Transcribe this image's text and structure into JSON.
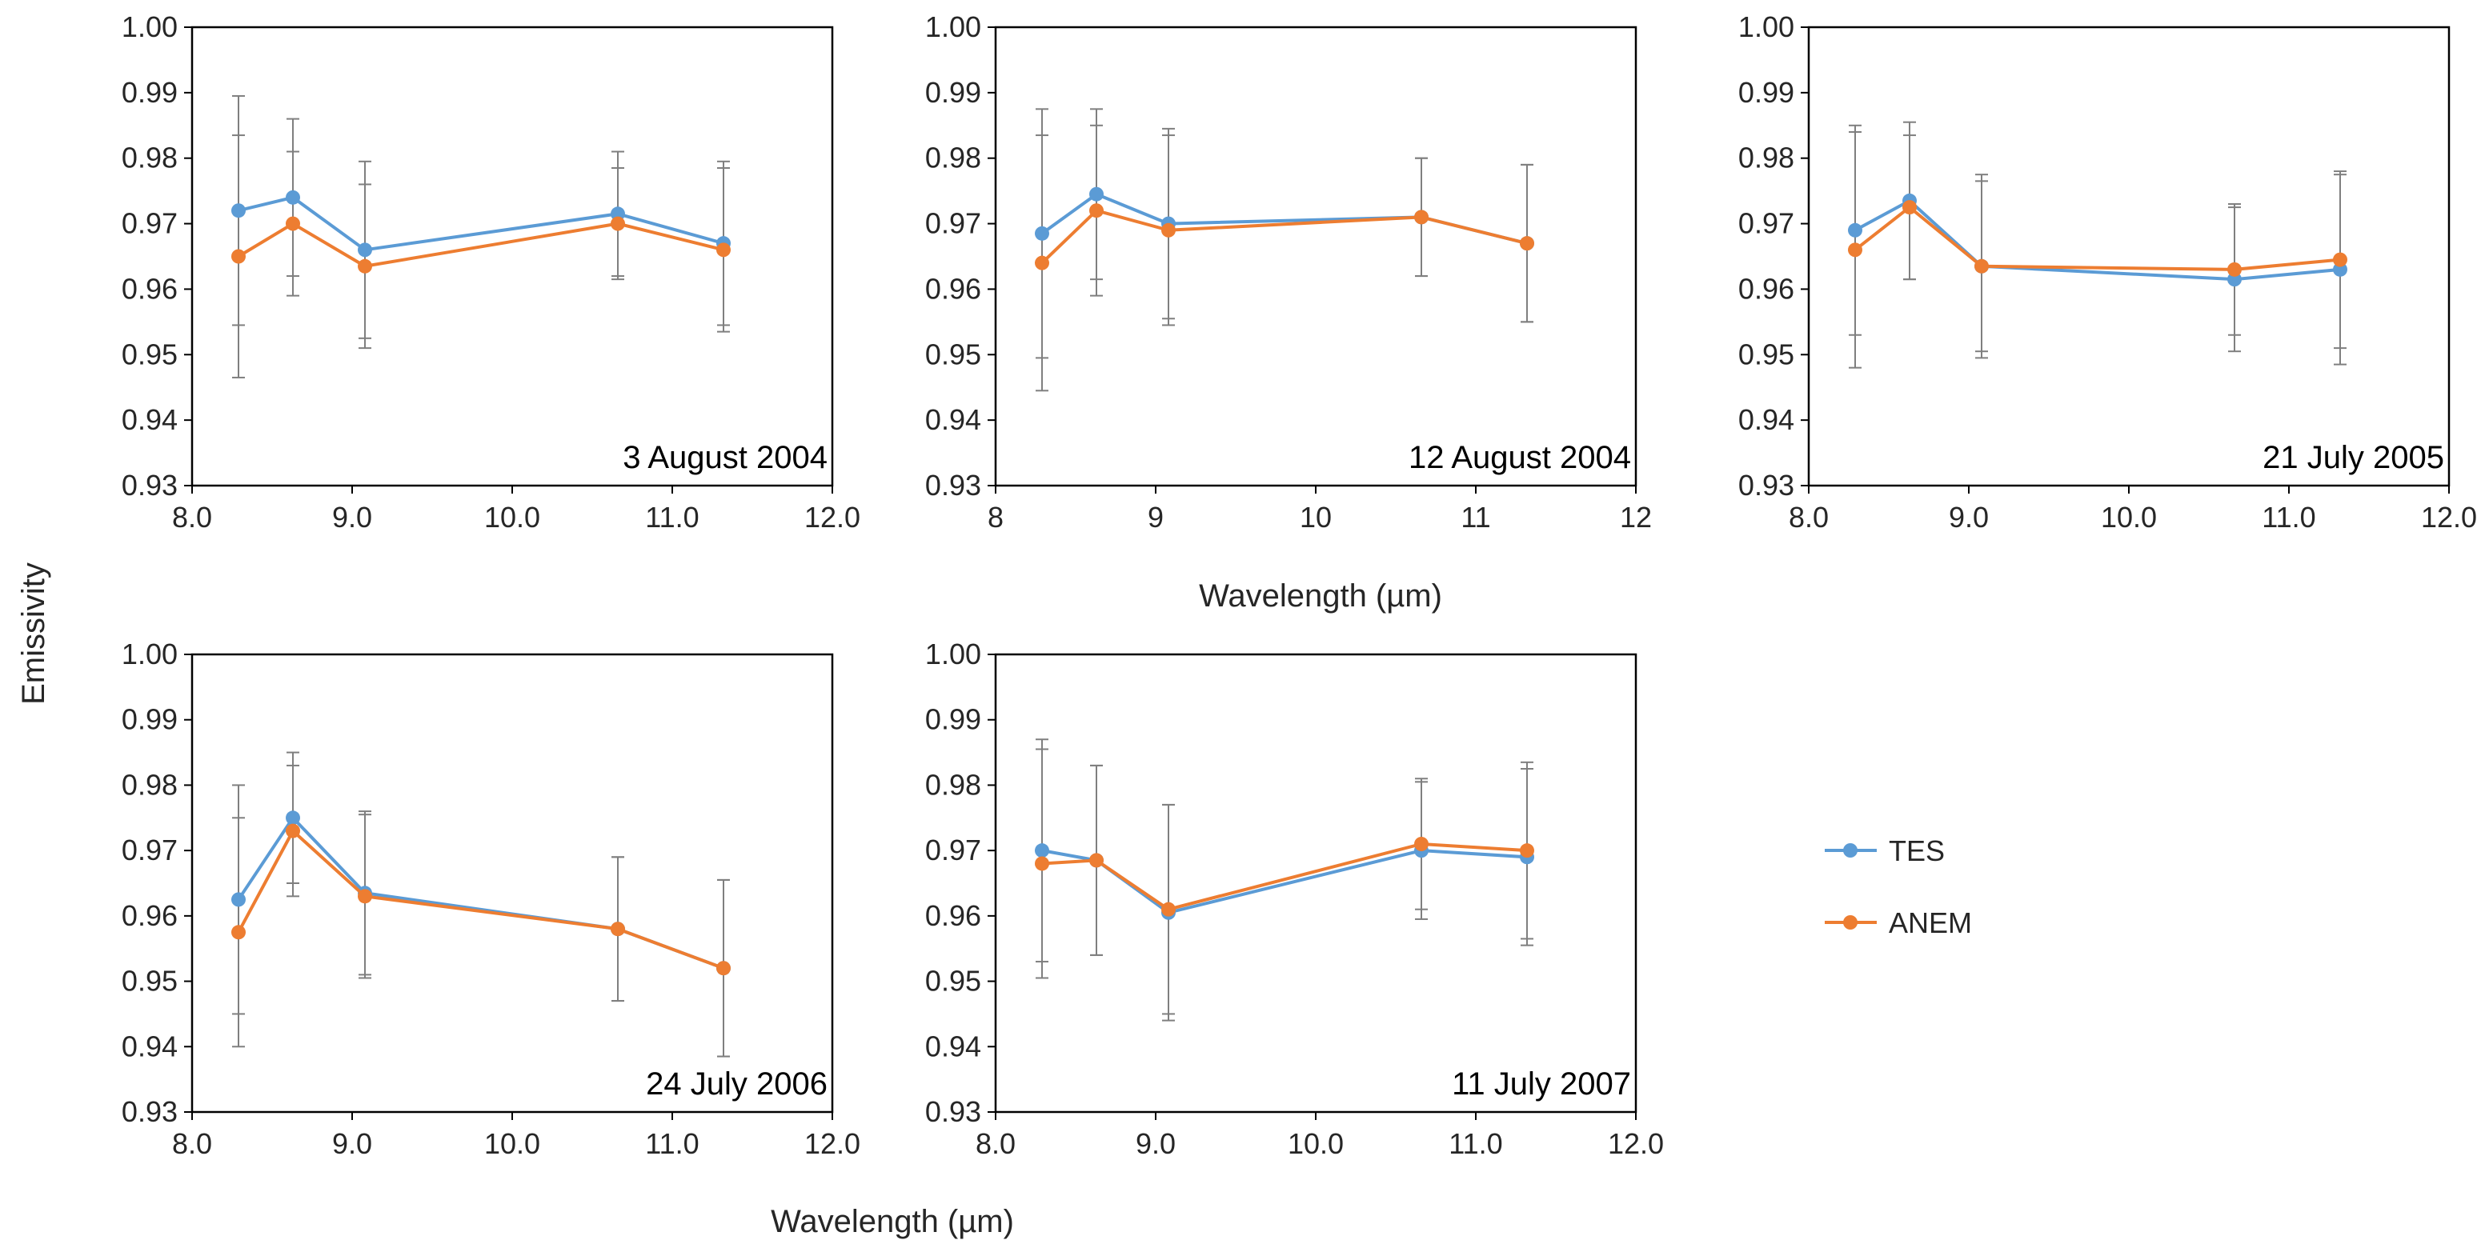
{
  "figure": {
    "ylabel": "Emissivity",
    "xlabel_top": "Wavelength (µm)",
    "xlabel_bottom": "Wavelength (µm)"
  },
  "legend": {
    "entries": [
      {
        "name": "TES",
        "color": "#5b9bd5"
      },
      {
        "name": "ANEM",
        "color": "#ed7d31"
      }
    ]
  },
  "colors": {
    "tes": "#5b9bd5",
    "anem": "#ed7d31",
    "error_bar": "#7f7f7f",
    "frame": "#000000"
  },
  "chart_data": [
    {
      "type": "line",
      "title": "3 August 2004",
      "xlabel": "",
      "ylabel": "",
      "xlim": [
        8,
        12
      ],
      "ylim": [
        0.93,
        1.0
      ],
      "xticks": [
        8,
        9,
        10,
        11,
        12
      ],
      "xtick_labels": [
        "8.0",
        "9.0",
        "10.0",
        "11.0",
        "12.0"
      ],
      "yticks": [
        0.93,
        0.94,
        0.95,
        0.96,
        0.97,
        0.98,
        0.99,
        1.0
      ],
      "ytick_labels": [
        "0.93",
        "0.94",
        "0.95",
        "0.96",
        "0.97",
        "0.98",
        "0.99",
        "1.00"
      ],
      "x": [
        8.29,
        8.63,
        9.08,
        10.66,
        11.32
      ],
      "series": [
        {
          "name": "TES",
          "values": [
            0.972,
            0.974,
            0.966,
            0.9715,
            0.967
          ],
          "error": [
            0.0175,
            0.012,
            0.0135,
            0.0095,
            0.0125
          ]
        },
        {
          "name": "ANEM",
          "values": [
            0.965,
            0.97,
            0.9635,
            0.97,
            0.966
          ],
          "error": [
            0.0185,
            0.011,
            0.0125,
            0.0085,
            0.0125
          ]
        }
      ]
    },
    {
      "type": "line",
      "title": "12 August 2004",
      "xlabel": "",
      "ylabel": "",
      "xlim": [
        8,
        12
      ],
      "ylim": [
        0.93,
        1.0
      ],
      "xticks": [
        8,
        9,
        10,
        11,
        12
      ],
      "xtick_labels": [
        "8",
        "9",
        "10",
        "11",
        "12"
      ],
      "yticks": [
        0.93,
        0.94,
        0.95,
        0.96,
        0.97,
        0.98,
        0.99,
        1.0
      ],
      "ytick_labels": [
        "0.93",
        "0.94",
        "0.95",
        "0.96",
        "0.97",
        "0.98",
        "0.99",
        "1.00"
      ],
      "x": [
        8.29,
        8.63,
        9.08,
        10.66,
        11.32
      ],
      "series": [
        {
          "name": "TES",
          "values": [
            0.9685,
            0.9745,
            0.97,
            0.971,
            0.967
          ],
          "error": [
            0.019,
            0.013,
            0.0145,
            0.009,
            0.012
          ]
        },
        {
          "name": "ANEM",
          "values": [
            0.964,
            0.972,
            0.969,
            0.971,
            0.967
          ],
          "error": [
            0.0195,
            0.013,
            0.0145,
            0.009,
            0.012
          ]
        }
      ]
    },
    {
      "type": "line",
      "title": "21 July 2005",
      "xlabel": "",
      "ylabel": "",
      "xlim": [
        8,
        12
      ],
      "ylim": [
        0.93,
        1.0
      ],
      "xticks": [
        8,
        9,
        10,
        11,
        12
      ],
      "xtick_labels": [
        "8.0",
        "9.0",
        "10.0",
        "11.0",
        "12.0"
      ],
      "yticks": [
        0.93,
        0.94,
        0.95,
        0.96,
        0.97,
        0.98,
        0.99,
        1.0
      ],
      "ytick_labels": [
        "0.93",
        "0.94",
        "0.95",
        "0.96",
        "0.97",
        "0.98",
        "0.99",
        "1.00"
      ],
      "x": [
        8.29,
        8.63,
        9.08,
        10.66,
        11.32
      ],
      "series": [
        {
          "name": "TES",
          "values": [
            0.969,
            0.9735,
            0.9635,
            0.9615,
            0.963
          ],
          "error": [
            0.016,
            0.012,
            0.014,
            0.011,
            0.0145
          ]
        },
        {
          "name": "ANEM",
          "values": [
            0.966,
            0.9725,
            0.9635,
            0.963,
            0.9645
          ],
          "error": [
            0.018,
            0.011,
            0.013,
            0.01,
            0.0135
          ]
        }
      ]
    },
    {
      "type": "line",
      "title": "24 July 2006",
      "xlabel": "",
      "ylabel": "",
      "xlim": [
        8,
        12
      ],
      "ylim": [
        0.93,
        1.0
      ],
      "xticks": [
        8,
        9,
        10,
        11,
        12
      ],
      "xtick_labels": [
        "8.0",
        "9.0",
        "10.0",
        "11.0",
        "12.0"
      ],
      "yticks": [
        0.93,
        0.94,
        0.95,
        0.96,
        0.97,
        0.98,
        0.99,
        1.0
      ],
      "ytick_labels": [
        "0.93",
        "0.94",
        "0.95",
        "0.96",
        "0.97",
        "0.98",
        "0.99",
        "1.00"
      ],
      "x": [
        8.29,
        8.63,
        9.08,
        10.66,
        11.32
      ],
      "series": [
        {
          "name": "TES",
          "values": [
            0.9625,
            0.975,
            0.9635,
            0.958,
            0.952
          ],
          "error": [
            0.0175,
            0.01,
            0.0125,
            0.011,
            0.0135
          ]
        },
        {
          "name": "ANEM",
          "values": [
            0.9575,
            0.973,
            0.963,
            0.958,
            0.952
          ],
          "error": [
            0.0175,
            0.01,
            0.0125,
            0.011,
            0.0135
          ]
        }
      ]
    },
    {
      "type": "line",
      "title": "11 July 2007",
      "xlabel": "",
      "ylabel": "",
      "xlim": [
        8,
        12
      ],
      "ylim": [
        0.93,
        1.0
      ],
      "xticks": [
        8,
        9,
        10,
        11,
        12
      ],
      "xtick_labels": [
        "8.0",
        "9.0",
        "10.0",
        "11.0",
        "12.0"
      ],
      "yticks": [
        0.93,
        0.94,
        0.95,
        0.96,
        0.97,
        0.98,
        0.99,
        1.0
      ],
      "ytick_labels": [
        "0.93",
        "0.94",
        "0.95",
        "0.96",
        "0.97",
        "0.98",
        "0.99",
        "1.00"
      ],
      "x": [
        8.29,
        8.63,
        9.08,
        10.66,
        11.32
      ],
      "series": [
        {
          "name": "TES",
          "values": [
            0.97,
            0.9685,
            0.9605,
            0.97,
            0.969
          ],
          "error": [
            0.017,
            0.0145,
            0.0165,
            0.0105,
            0.0135
          ]
        },
        {
          "name": "ANEM",
          "values": [
            0.968,
            0.9685,
            0.961,
            0.971,
            0.97
          ],
          "error": [
            0.0175,
            0.0145,
            0.016,
            0.01,
            0.0135
          ]
        }
      ]
    }
  ]
}
